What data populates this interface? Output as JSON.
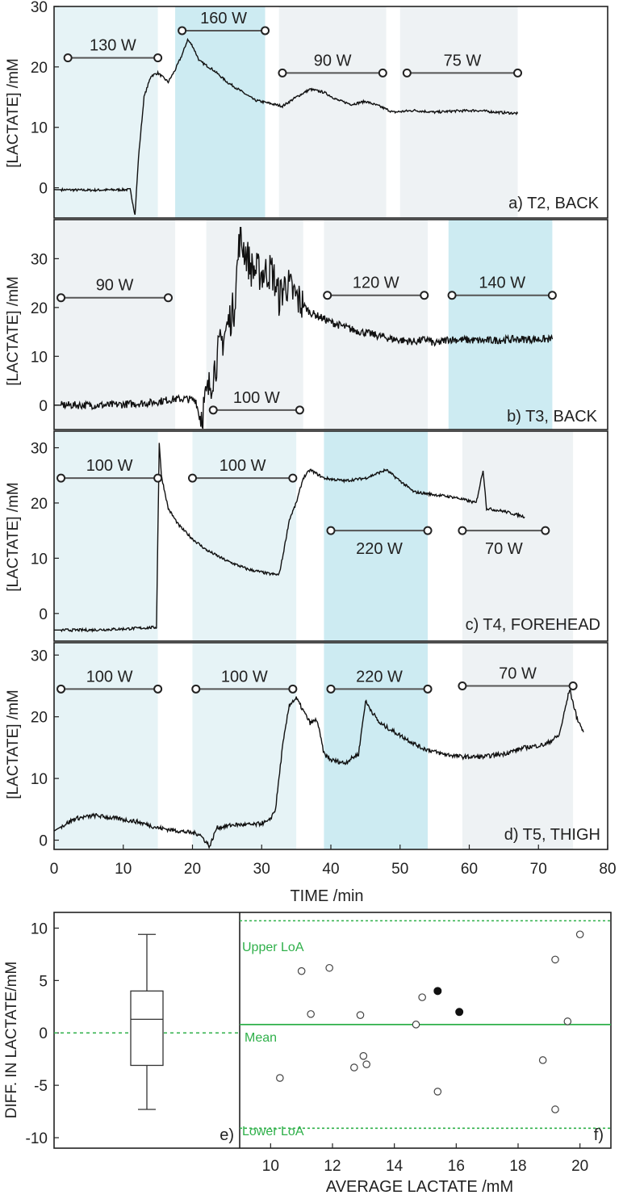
{
  "colors": {
    "light": "#e6f3f6",
    "mid": "#cdebf2",
    "gray": "#eef2f4",
    "trace": "#111111",
    "line": "#555555",
    "green": "#2fb04a"
  },
  "xlabel": "TIME /min",
  "ylabel": "[LACTATE] /mM",
  "chart_data": [
    {
      "type": "line",
      "panel": "a",
      "label": "a) T2, BACK",
      "xlim": [
        0,
        80
      ],
      "ylim": [
        -5,
        30
      ],
      "yticks": [
        0,
        10,
        20,
        30
      ],
      "bands": [
        [
          0,
          15,
          "light"
        ],
        [
          17.5,
          30.5,
          "mid"
        ],
        [
          32.5,
          48,
          "gray"
        ],
        [
          50,
          67,
          "gray"
        ]
      ],
      "power_labels": [
        {
          "text": "130 W",
          "x1": 2,
          "x2": 15,
          "y": 21.5,
          "pos": "above"
        },
        {
          "text": "160 W",
          "x1": 18.5,
          "x2": 30.5,
          "y": 26,
          "pos": "above"
        },
        {
          "text": "90 W",
          "x1": 33,
          "x2": 47.5,
          "y": 19,
          "pos": "above"
        },
        {
          "text": "75 W",
          "x1": 51,
          "x2": 67,
          "y": 19,
          "pos": "above"
        }
      ],
      "trace": [
        [
          0,
          -0.3
        ],
        [
          5,
          -0.4
        ],
        [
          11,
          -0.3
        ],
        [
          11.7,
          -4.5
        ],
        [
          12.2,
          5
        ],
        [
          13,
          15
        ],
        [
          14,
          18.5
        ],
        [
          15,
          19
        ],
        [
          16.5,
          17.5
        ],
        [
          17.5,
          19.5
        ],
        [
          18.5,
          22
        ],
        [
          19.3,
          24.5
        ],
        [
          20,
          23.5
        ],
        [
          21,
          21
        ],
        [
          23,
          19.5
        ],
        [
          25,
          17.5
        ],
        [
          27,
          16
        ],
        [
          29,
          14.5
        ],
        [
          31,
          14
        ],
        [
          33,
          13.5
        ],
        [
          35,
          15
        ],
        [
          37,
          16.3
        ],
        [
          39,
          15.8
        ],
        [
          41,
          14.5
        ],
        [
          43,
          13.8
        ],
        [
          45,
          14.3
        ],
        [
          47,
          13.5
        ],
        [
          49,
          12.5
        ],
        [
          52,
          12.8
        ],
        [
          55,
          12.5
        ],
        [
          58,
          12.7
        ],
        [
          61,
          12.8
        ],
        [
          64,
          12.5
        ],
        [
          67,
          12.3
        ]
      ]
    },
    {
      "type": "line",
      "panel": "b",
      "label": "b) T3, BACK",
      "xlim": [
        0,
        80
      ],
      "ylim": [
        -5,
        38
      ],
      "yticks": [
        0,
        10,
        20,
        30
      ],
      "bands": [
        [
          0,
          17.5,
          "gray"
        ],
        [
          22,
          36,
          "gray"
        ],
        [
          39,
          54,
          "gray"
        ],
        [
          57,
          72,
          "mid"
        ]
      ],
      "power_labels": [
        {
          "text": "90 W",
          "x1": 1,
          "x2": 16.5,
          "y": 22,
          "pos": "above"
        },
        {
          "text": "100 W",
          "x1": 23,
          "x2": 35.5,
          "y": -1,
          "pos": "above"
        },
        {
          "text": "120 W",
          "x1": 39.5,
          "x2": 53.5,
          "y": 22.5,
          "pos": "above"
        },
        {
          "text": "140 W",
          "x1": 57.5,
          "x2": 72,
          "y": 22.5,
          "pos": "above"
        }
      ],
      "trace": [
        [
          0,
          0
        ],
        [
          8,
          0
        ],
        [
          14,
          0.5
        ],
        [
          17,
          1.2
        ],
        [
          19,
          1.3
        ],
        [
          20.5,
          1
        ],
        [
          21,
          -2.5
        ],
        [
          21.5,
          -1
        ],
        [
          22.5,
          4
        ],
        [
          24,
          12
        ],
        [
          25,
          16
        ],
        [
          26,
          20
        ],
        [
          26.8,
          34
        ],
        [
          27.5,
          32
        ],
        [
          28.5,
          28
        ],
        [
          30,
          27
        ],
        [
          31.5,
          27.5
        ],
        [
          32.5,
          22
        ],
        [
          33.5,
          25
        ],
        [
          35,
          22
        ],
        [
          37,
          19
        ],
        [
          40,
          17
        ],
        [
          43,
          15.5
        ],
        [
          46,
          14.5
        ],
        [
          49,
          13.5
        ],
        [
          52,
          13
        ],
        [
          54,
          13.5
        ],
        [
          55,
          12.5
        ],
        [
          57,
          13.5
        ],
        [
          62,
          13.2
        ],
        [
          67,
          13.5
        ],
        [
          72,
          13.5
        ]
      ]
    },
    {
      "type": "line",
      "panel": "c",
      "label": "c) T4, FOREHEAD",
      "xlim": [
        0,
        80
      ],
      "ylim": [
        -5,
        33
      ],
      "yticks": [
        0,
        10,
        20,
        30
      ],
      "bands": [
        [
          0,
          15,
          "light"
        ],
        [
          20,
          35,
          "light"
        ],
        [
          39,
          54,
          "mid"
        ],
        [
          59,
          75,
          "gray"
        ]
      ],
      "power_labels": [
        {
          "text": "100 W",
          "x1": 1,
          "x2": 15,
          "y": 24.5,
          "pos": "above"
        },
        {
          "text": "100 W",
          "x1": 20,
          "x2": 34.5,
          "y": 24.5,
          "pos": "above"
        },
        {
          "text": "220 W",
          "x1": 40,
          "x2": 54,
          "y": 15,
          "pos": "below"
        },
        {
          "text": "70 W",
          "x1": 59,
          "x2": 71,
          "y": 15,
          "pos": "below"
        }
      ],
      "trace": [
        [
          0,
          -3
        ],
        [
          5,
          -3
        ],
        [
          10,
          -2.8
        ],
        [
          14.8,
          -2.5
        ],
        [
          15.2,
          31
        ],
        [
          15.5,
          25
        ],
        [
          16.5,
          19
        ],
        [
          18,
          16
        ],
        [
          20,
          13.5
        ],
        [
          22,
          11.5
        ],
        [
          25,
          9.5
        ],
        [
          28,
          8
        ],
        [
          31,
          7.2
        ],
        [
          32.5,
          7
        ],
        [
          33,
          10
        ],
        [
          34,
          17
        ],
        [
          35,
          20
        ],
        [
          36,
          24.5
        ],
        [
          37,
          26
        ],
        [
          39,
          24.5
        ],
        [
          42,
          24
        ],
        [
          45,
          24.5
        ],
        [
          48,
          26
        ],
        [
          50,
          24
        ],
        [
          52,
          22
        ],
        [
          55,
          21.5
        ],
        [
          58,
          21
        ],
        [
          61,
          20
        ],
        [
          62,
          26
        ],
        [
          62.5,
          19
        ],
        [
          65,
          18.5
        ],
        [
          68,
          17.5
        ]
      ]
    },
    {
      "type": "line",
      "panel": "d",
      "label": "d) T5, THIGH",
      "xlim": [
        0,
        80
      ],
      "ylim": [
        -1.5,
        32
      ],
      "yticks": [
        0,
        10,
        20,
        30
      ],
      "xticks": [
        0,
        10,
        20,
        30,
        40,
        50,
        60,
        70,
        80
      ],
      "bands": [
        [
          0,
          15,
          "light"
        ],
        [
          20,
          35,
          "light"
        ],
        [
          39,
          54,
          "mid"
        ],
        [
          59,
          75,
          "gray"
        ]
      ],
      "power_labels": [
        {
          "text": "100 W",
          "x1": 1,
          "x2": 15,
          "y": 24.5,
          "pos": "above"
        },
        {
          "text": "100 W",
          "x1": 20.5,
          "x2": 34.5,
          "y": 24.5,
          "pos": "above"
        },
        {
          "text": "220 W",
          "x1": 40,
          "x2": 54,
          "y": 24.5,
          "pos": "above"
        },
        {
          "text": "70 W",
          "x1": 59,
          "x2": 75,
          "y": 25,
          "pos": "above"
        }
      ],
      "trace": [
        [
          0,
          1.5
        ],
        [
          3,
          3.5
        ],
        [
          6,
          4
        ],
        [
          9,
          3.5
        ],
        [
          12,
          3
        ],
        [
          15,
          2
        ],
        [
          18,
          1.5
        ],
        [
          21,
          1
        ],
        [
          22.5,
          -1
        ],
        [
          23.5,
          2
        ],
        [
          26,
          2.5
        ],
        [
          29,
          2.5
        ],
        [
          31,
          3
        ],
        [
          32,
          5
        ],
        [
          33,
          15
        ],
        [
          34,
          22
        ],
        [
          35,
          23
        ],
        [
          36,
          21
        ],
        [
          37,
          19
        ],
        [
          38,
          19.5
        ],
        [
          39,
          14
        ],
        [
          40,
          13
        ],
        [
          42,
          12.5
        ],
        [
          44,
          14
        ],
        [
          45,
          22.5
        ],
        [
          47,
          19
        ],
        [
          50,
          17
        ],
        [
          53,
          15
        ],
        [
          56,
          14
        ],
        [
          59,
          13.5
        ],
        [
          62,
          13.5
        ],
        [
          65,
          14
        ],
        [
          68,
          15
        ],
        [
          71,
          15.5
        ],
        [
          73,
          17
        ],
        [
          74.5,
          24.5
        ],
        [
          75.5,
          20
        ],
        [
          76.5,
          17.5
        ]
      ]
    },
    {
      "type": "box",
      "panel": "e",
      "label": "e)",
      "ylabel": "DIFF. IN LACTATE/mM",
      "ylim": [
        -11,
        11.5
      ],
      "yticks": [
        -10,
        -5,
        0,
        5,
        10
      ],
      "whisker_low": -7.3,
      "q1": -3.1,
      "median": 1.3,
      "q3": 4.0,
      "whisker_high": 9.4,
      "zero_line": 0
    },
    {
      "type": "scatter",
      "panel": "f",
      "label": "f)",
      "xlabel": "AVERAGE LACTATE /mM",
      "xlim": [
        9,
        21
      ],
      "ylim": [
        -11,
        11.5
      ],
      "xticks": [
        10,
        12,
        14,
        16,
        18,
        20
      ],
      "upper_loa": {
        "label": "Upper LoA",
        "value": 10.7
      },
      "mean": {
        "label": "Mean",
        "value": 0.8
      },
      "lower_loa": {
        "label": "Lower LoA",
        "value": -9.1
      },
      "open_points": [
        [
          10.3,
          -4.3
        ],
        [
          11.0,
          5.9
        ],
        [
          11.3,
          1.8
        ],
        [
          11.9,
          6.2
        ],
        [
          12.7,
          -3.3
        ],
        [
          12.9,
          1.7
        ],
        [
          13.0,
          -2.2
        ],
        [
          13.1,
          -3.0
        ],
        [
          14.7,
          0.8
        ],
        [
          14.9,
          3.4
        ],
        [
          15.4,
          -5.6
        ],
        [
          18.8,
          -2.6
        ],
        [
          19.2,
          7.0
        ],
        [
          19.2,
          -7.3
        ],
        [
          19.6,
          1.1
        ],
        [
          20.0,
          9.4
        ]
      ],
      "filled_points": [
        [
          15.4,
          4.0
        ],
        [
          16.1,
          2.0
        ]
      ]
    }
  ]
}
